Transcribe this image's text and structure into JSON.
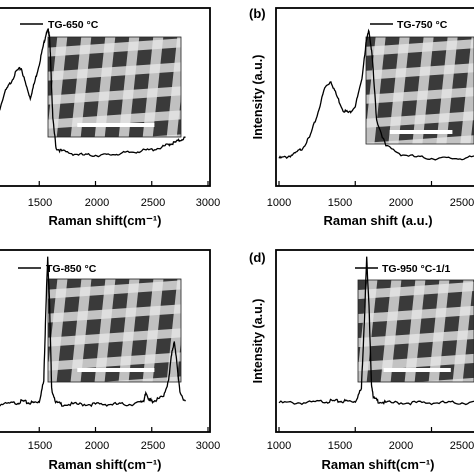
{
  "figure": {
    "panels": [
      {
        "id": "a",
        "panel_label": "",
        "legend": "TG-650 °C",
        "xlabel": "Raman shift(cm⁻¹)",
        "ylabel": "",
        "x_ticks": [
          "1500",
          "2000",
          "2500",
          "3000"
        ],
        "inset": "SEM image of woven fibre mesh with white scale bar"
      },
      {
        "id": "b",
        "panel_label": "(b)",
        "legend": "TG-750 °C",
        "xlabel": "Raman shift (a.u.)",
        "ylabel": "Intensity (a.u.)",
        "x_ticks": [
          "1000",
          "1500",
          "2000",
          "2500"
        ],
        "inset": "SEM image of woven fibre mesh with white scale bar"
      },
      {
        "id": "c",
        "panel_label": "",
        "legend": "TG-850 °C",
        "xlabel": "Raman shift(cm⁻¹)",
        "ylabel": "",
        "x_ticks": [
          "1500",
          "2000",
          "2500",
          "3000"
        ],
        "inset": "SEM image of woven fibre mesh with white scale bar"
      },
      {
        "id": "d",
        "panel_label": "(d)",
        "legend": "TG-950 °C-1/1",
        "xlabel": "Raman shift(cm⁻¹)",
        "ylabel": "Intensity (a.u.)",
        "x_ticks": [
          "1000",
          "1500",
          "2000",
          "2500"
        ],
        "inset": "SEM image of woven fibre mesh with white scale bar"
      }
    ]
  },
  "chart_data": [
    {
      "type": "line",
      "xlim": [
        1000,
        3000
      ],
      "ylim": [
        0,
        1
      ],
      "series": [
        {
          "name": "TG-650 °C",
          "x": [
            1000,
            1100,
            1200,
            1250,
            1300,
            1340,
            1380,
            1420,
            1460,
            1500,
            1540,
            1560,
            1580,
            1590,
            1600,
            1620,
            1650,
            1700,
            1800,
            1900,
            2000,
            2100,
            2200,
            2300,
            2400,
            2500,
            2600,
            2650,
            2700,
            2750,
            2800
          ],
          "y": [
            0.1,
            0.3,
            0.55,
            0.62,
            0.7,
            0.72,
            0.6,
            0.5,
            0.62,
            0.75,
            0.9,
            0.97,
            1.0,
            0.96,
            0.8,
            0.35,
            0.13,
            0.11,
            0.09,
            0.08,
            0.08,
            0.08,
            0.09,
            0.1,
            0.11,
            0.12,
            0.14,
            0.16,
            0.17,
            0.19,
            0.21
          ]
        }
      ]
    },
    {
      "type": "line",
      "xlim": [
        1000,
        2600
      ],
      "ylim": [
        0,
        1
      ],
      "series": [
        {
          "name": "TG-750 °C",
          "x": [
            1000,
            1050,
            1100,
            1150,
            1200,
            1250,
            1300,
            1340,
            1380,
            1420,
            1460,
            1500,
            1540,
            1570,
            1590,
            1610,
            1640,
            1700,
            1800,
            1900,
            2000,
            2100,
            2200,
            2300,
            2400,
            2500,
            2600
          ],
          "y": [
            0.07,
            0.08,
            0.1,
            0.14,
            0.22,
            0.38,
            0.58,
            0.63,
            0.52,
            0.42,
            0.4,
            0.45,
            0.62,
            0.9,
            1.0,
            0.82,
            0.35,
            0.16,
            0.1,
            0.08,
            0.07,
            0.07,
            0.07,
            0.08,
            0.09,
            0.09,
            0.1
          ]
        }
      ]
    },
    {
      "type": "line",
      "xlim": [
        1000,
        3000
      ],
      "ylim": [
        0,
        1
      ],
      "series": [
        {
          "name": "TG-850 °C",
          "x": [
            1000,
            1100,
            1200,
            1300,
            1350,
            1400,
            1450,
            1500,
            1540,
            1560,
            1575,
            1590,
            1610,
            1650,
            1700,
            1800,
            1900,
            2000,
            2100,
            2200,
            2300,
            2400,
            2430,
            2450,
            2480,
            2500,
            2550,
            2600,
            2650,
            2680,
            2700,
            2720,
            2750,
            2800
          ],
          "y": [
            0.05,
            0.05,
            0.05,
            0.06,
            0.07,
            0.06,
            0.06,
            0.07,
            0.2,
            0.7,
            1.0,
            0.75,
            0.15,
            0.06,
            0.05,
            0.05,
            0.05,
            0.05,
            0.05,
            0.05,
            0.05,
            0.06,
            0.08,
            0.12,
            0.08,
            0.07,
            0.08,
            0.1,
            0.2,
            0.4,
            0.45,
            0.35,
            0.12,
            0.07
          ]
        }
      ]
    },
    {
      "type": "line",
      "xlim": [
        1000,
        2600
      ],
      "ylim": [
        0,
        1
      ],
      "series": [
        {
          "name": "TG-950 °C-1/1",
          "x": [
            1000,
            1100,
            1200,
            1300,
            1350,
            1400,
            1450,
            1500,
            1540,
            1560,
            1575,
            1590,
            1605,
            1620,
            1650,
            1700,
            1800,
            1900,
            2000,
            2100,
            2200,
            2300,
            2400,
            2500,
            2600
          ],
          "y": [
            0.06,
            0.06,
            0.06,
            0.07,
            0.07,
            0.07,
            0.07,
            0.07,
            0.15,
            0.6,
            1.0,
            0.7,
            0.2,
            0.09,
            0.07,
            0.06,
            0.06,
            0.06,
            0.06,
            0.06,
            0.06,
            0.06,
            0.06,
            0.06,
            0.06
          ]
        }
      ]
    }
  ]
}
